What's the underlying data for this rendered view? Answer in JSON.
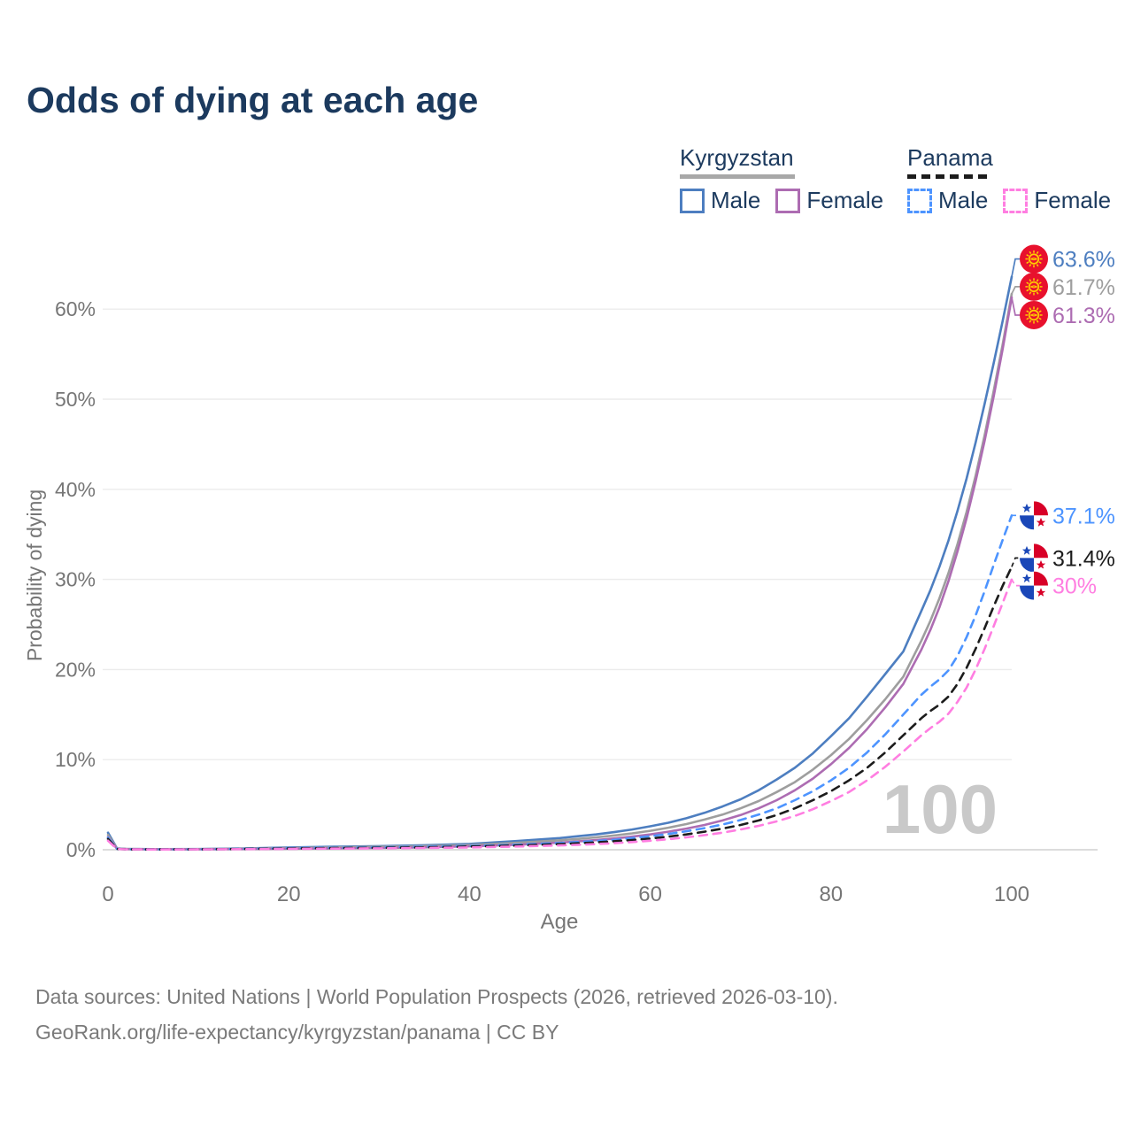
{
  "title": "Odds of dying at each age",
  "legend": {
    "groups": [
      {
        "label": "Kyrgyzstan",
        "line_style": "solid",
        "underline_color": "#a8a8a8",
        "items": [
          {
            "label": "Male",
            "color": "#4d7ec0"
          },
          {
            "label": "Female",
            "color": "#ad6cb2"
          }
        ]
      },
      {
        "label": "Panama",
        "line_style": "dashed",
        "underline_color": "#1c1c1c",
        "items": [
          {
            "label": "Male",
            "color": "#4d94ff"
          },
          {
            "label": "Female",
            "color": "#ff7ee1"
          }
        ]
      }
    ]
  },
  "chart_data": {
    "type": "line",
    "title": "Odds of dying at each age",
    "xlabel": "Age",
    "ylabel": "Probability of dying",
    "watermark": "100",
    "xlim": [
      0,
      100
    ],
    "ylim": [
      0,
      66
    ],
    "grid": "horizontal",
    "x_ticks": [
      {
        "v": 0,
        "label": "0"
      },
      {
        "v": 20,
        "label": "20"
      },
      {
        "v": 40,
        "label": "40"
      },
      {
        "v": 60,
        "label": "60"
      },
      {
        "v": 80,
        "label": "80"
      },
      {
        "v": 100,
        "label": "100"
      }
    ],
    "y_ticks": [
      {
        "v": 0,
        "label": "0%"
      },
      {
        "v": 10,
        "label": "10%"
      },
      {
        "v": 20,
        "label": "20%"
      },
      {
        "v": 30,
        "label": "30%"
      },
      {
        "v": 40,
        "label": "40%"
      },
      {
        "v": 50,
        "label": "50%"
      },
      {
        "v": 60,
        "label": "60%"
      }
    ],
    "ages": [
      0,
      1,
      2,
      5,
      10,
      15,
      20,
      25,
      30,
      35,
      40,
      45,
      50,
      52,
      54,
      56,
      58,
      60,
      62,
      64,
      66,
      68,
      70,
      72,
      74,
      76,
      78,
      80,
      82,
      84,
      86,
      88,
      90,
      91,
      92,
      93,
      94,
      95,
      96,
      97,
      98,
      99,
      100
    ],
    "series": [
      {
        "name": "Kyrgyzstan Male",
        "country": "Kyrgyzstan",
        "sex": "Male",
        "style": "solid",
        "color": "#4d7ec0",
        "flag": "kg",
        "end_label": "63.6%",
        "values": [
          1.9,
          0.15,
          0.1,
          0.07,
          0.08,
          0.15,
          0.26,
          0.33,
          0.4,
          0.5,
          0.65,
          0.95,
          1.3,
          1.5,
          1.7,
          1.95,
          2.25,
          2.6,
          3.0,
          3.5,
          4.1,
          4.8,
          5.6,
          6.6,
          7.8,
          9.1,
          10.7,
          12.6,
          14.6,
          17.0,
          19.5,
          22.0,
          26.5,
          28.8,
          31.4,
          34.3,
          37.6,
          41.2,
          45.2,
          49.5,
          54.0,
          58.7,
          63.6
        ]
      },
      {
        "name": "Kyrgyzstan",
        "country": "Kyrgyzstan",
        "sex": "Both",
        "style": "solid",
        "color": "#9e9e9e",
        "flag": "kg",
        "end_label": "61.7%",
        "values": [
          1.65,
          0.13,
          0.09,
          0.06,
          0.07,
          0.12,
          0.2,
          0.26,
          0.32,
          0.4,
          0.52,
          0.76,
          1.05,
          1.2,
          1.38,
          1.58,
          1.82,
          2.1,
          2.45,
          2.85,
          3.35,
          3.9,
          4.6,
          5.4,
          6.4,
          7.5,
          8.9,
          10.5,
          12.3,
          14.4,
          16.7,
          19.2,
          23.2,
          25.4,
          27.9,
          30.7,
          33.9,
          37.5,
          41.5,
          46.0,
          50.9,
          56.1,
          61.7
        ]
      },
      {
        "name": "Kyrgyzstan Female",
        "country": "Kyrgyzstan",
        "sex": "Female",
        "style": "solid",
        "color": "#ad6cb2",
        "flag": "kg",
        "end_label": "61.3%",
        "values": [
          1.4,
          0.11,
          0.07,
          0.05,
          0.05,
          0.08,
          0.12,
          0.16,
          0.2,
          0.27,
          0.38,
          0.55,
          0.8,
          0.92,
          1.07,
          1.25,
          1.45,
          1.7,
          2.0,
          2.35,
          2.75,
          3.25,
          3.85,
          4.6,
          5.5,
          6.6,
          7.9,
          9.5,
          11.3,
          13.4,
          15.8,
          18.4,
          22.2,
          24.4,
          26.9,
          29.8,
          33.1,
          36.8,
          40.9,
          45.4,
          50.3,
          55.6,
          61.3
        ]
      },
      {
        "name": "Panama Male",
        "country": "Panama",
        "sex": "Male",
        "style": "dashed",
        "color": "#4d94ff",
        "flag": "pa",
        "end_label": "37.1%",
        "values": [
          1.35,
          0.1,
          0.06,
          0.04,
          0.05,
          0.11,
          0.19,
          0.23,
          0.27,
          0.33,
          0.42,
          0.55,
          0.75,
          0.85,
          0.97,
          1.1,
          1.3,
          1.5,
          1.75,
          2.05,
          2.4,
          2.8,
          3.3,
          3.9,
          4.6,
          5.5,
          6.5,
          7.7,
          9.1,
          10.8,
          12.8,
          15.0,
          17.2,
          18.1,
          18.9,
          19.9,
          21.5,
          23.6,
          26.0,
          28.7,
          31.6,
          34.4,
          37.1
        ]
      },
      {
        "name": "Panama",
        "country": "Panama",
        "sex": "Both",
        "style": "dashed",
        "color": "#1c1c1c",
        "flag": "pa",
        "end_label": "31.4%",
        "values": [
          1.2,
          0.09,
          0.05,
          0.035,
          0.045,
          0.09,
          0.15,
          0.19,
          0.22,
          0.27,
          0.35,
          0.46,
          0.63,
          0.72,
          0.82,
          0.94,
          1.08,
          1.25,
          1.45,
          1.7,
          2.0,
          2.35,
          2.75,
          3.25,
          3.85,
          4.6,
          5.5,
          6.5,
          7.7,
          9.1,
          10.8,
          12.7,
          14.6,
          15.4,
          16.1,
          17.0,
          18.4,
          20.2,
          22.3,
          24.6,
          27.0,
          29.3,
          31.4
        ]
      },
      {
        "name": "Panama Female",
        "country": "Panama",
        "sex": "Female",
        "style": "dashed",
        "color": "#ff7ee1",
        "flag": "pa",
        "end_label": "30%",
        "values": [
          1.0,
          0.08,
          0.045,
          0.03,
          0.04,
          0.07,
          0.1,
          0.13,
          0.16,
          0.2,
          0.26,
          0.35,
          0.48,
          0.55,
          0.63,
          0.73,
          0.85,
          1.0,
          1.17,
          1.38,
          1.62,
          1.9,
          2.25,
          2.65,
          3.15,
          3.75,
          4.5,
          5.4,
          6.4,
          7.7,
          9.2,
          10.9,
          12.7,
          13.5,
          14.2,
          15.1,
          16.4,
          18.0,
          20.0,
          22.3,
          24.8,
          27.4,
          30.0
        ]
      }
    ]
  },
  "footer": {
    "line1": "Data sources: United Nations | World Population Prospects (2026, retrieved 2026-03-10).",
    "line2": "GeoRank.org/life-expectancy/kyrgyzstan/panama | CC BY"
  }
}
